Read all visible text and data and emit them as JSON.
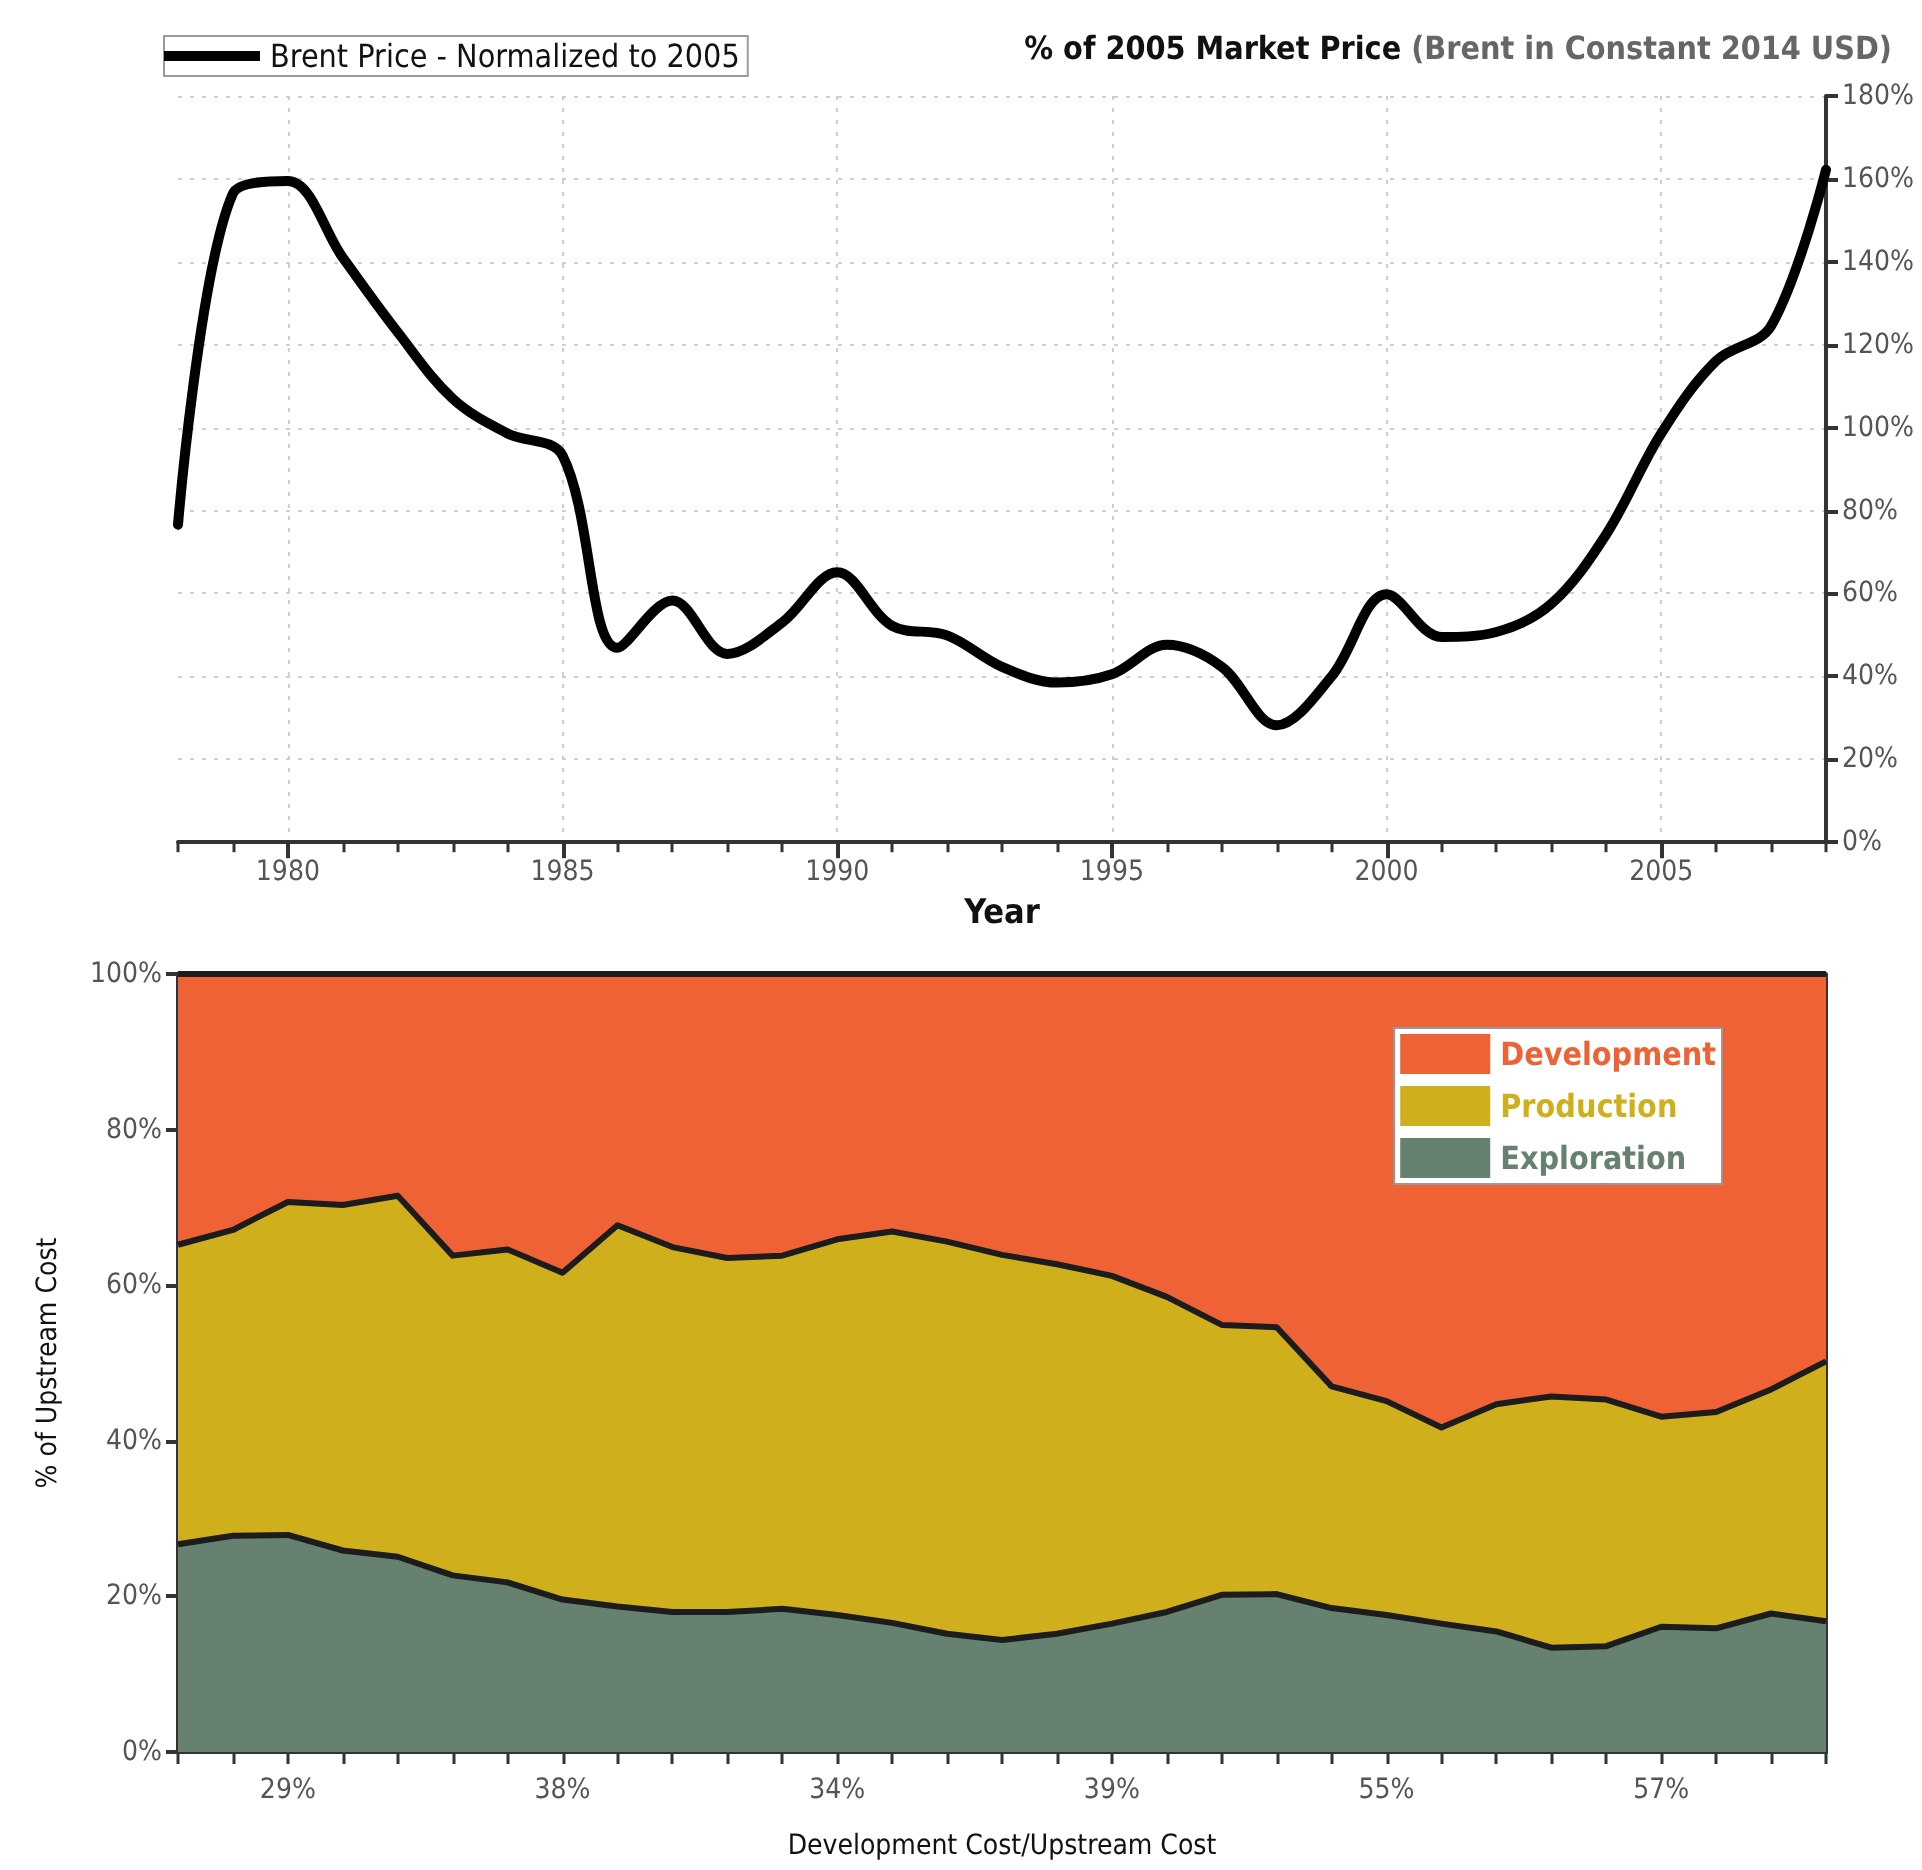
{
  "chart_data": [
    {
      "type": "line",
      "title": "% of 2005 Market Price",
      "subtitle": "(Brent in Constant 2014 USD)",
      "xlabel": "Year",
      "x": [
        1978,
        1979,
        1980,
        1981,
        1982,
        1983,
        1984,
        1985,
        1986,
        1987,
        1988,
        1989,
        1990,
        1991,
        1992,
        1993,
        1994,
        1995,
        1996,
        1997,
        1998,
        1999,
        2000,
        2001,
        2002,
        2003,
        2004,
        2005,
        2006,
        2007,
        2008
      ],
      "series": [
        {
          "name": "Brent Price - Normalized to 2005",
          "color": "#000000",
          "values": [
            76.6,
            156.5,
            159.5,
            141,
            123,
            107,
            98.6,
            93.3,
            46.9,
            58.3,
            45.4,
            53,
            65.1,
            52.2,
            49.9,
            42.3,
            38.5,
            40.5,
            47.6,
            42.3,
            28.2,
            40,
            59.8,
            49.5,
            50.7,
            57.5,
            74.3,
            98.6,
            116.1,
            124.5,
            162.2
          ]
        }
      ],
      "xlim": [
        1978,
        2008
      ],
      "xticks": [
        {
          "value": 1978,
          "label": null
        },
        {
          "value": 1979,
          "label": null
        },
        1980,
        {
          "value": 1981,
          "label": null
        },
        {
          "value": 1982,
          "label": null
        },
        {
          "value": 1983,
          "label": null
        },
        {
          "value": 1984,
          "label": null
        },
        1985,
        {
          "value": 1986,
          "label": null
        },
        {
          "value": 1987,
          "label": null
        },
        {
          "value": 1988,
          "label": null
        },
        {
          "value": 1989,
          "label": null
        },
        1990,
        {
          "value": 1991,
          "label": null
        },
        {
          "value": 1992,
          "label": null
        },
        {
          "value": 1993,
          "label": null
        },
        {
          "value": 1994,
          "label": null
        },
        1995,
        {
          "value": 1996,
          "label": null
        },
        {
          "value": 1997,
          "label": null
        },
        {
          "value": 1998,
          "label": null
        },
        {
          "value": 1999,
          "label": null
        },
        2000,
        {
          "value": 2001,
          "label": null
        },
        {
          "value": 2002,
          "label": null
        },
        {
          "value": 2003,
          "label": null
        },
        {
          "value": 2004,
          "label": null
        },
        2005,
        {
          "value": 2006,
          "label": null
        },
        {
          "value": 2007,
          "label": null
        },
        {
          "value": 2008,
          "label": null
        }
      ],
      "ylim": [
        0,
        180
      ],
      "yticks": [
        {
          "value": 0,
          "label": "0%"
        },
        {
          "value": 20,
          "label": "20%"
        },
        {
          "value": 40,
          "label": "40%"
        },
        {
          "value": 60,
          "label": "60%"
        },
        {
          "value": 80,
          "label": "80%"
        },
        {
          "value": 100,
          "label": "100%"
        },
        {
          "value": 120,
          "label": "120%"
        },
        {
          "value": 140,
          "label": "140%"
        },
        {
          "value": 160,
          "label": "160%"
        },
        {
          "value": 180,
          "label": "180%"
        }
      ],
      "grid": true,
      "legend": "top left",
      "marker": "none",
      "line_style": "solid"
    },
    {
      "type": "area",
      "xlabel": "Development Cost/Upstream Cost",
      "ylabel": "% of Upstream Cost",
      "stacked": true,
      "categories": [
        null,
        null,
        "29%",
        null,
        null,
        null,
        null,
        "38%",
        null,
        null,
        null,
        null,
        "34%",
        null,
        null,
        null,
        null,
        "39%",
        null,
        null,
        null,
        null,
        "55%",
        null,
        null,
        null,
        null,
        "57%",
        null,
        null,
        null
      ],
      "series": [
        {
          "name": "Exploration",
          "color": "#66816f",
          "values": [
            26.7,
            27.8,
            27.9,
            25.9,
            25.1,
            22.7,
            21.8,
            19.6,
            18.7,
            18.0,
            18.0,
            18.4,
            17.6,
            16.6,
            15.2,
            14.4,
            15.2,
            16.5,
            18.0,
            20.2,
            20.3,
            18.5,
            17.6,
            16.5,
            15.5,
            13.4,
            13.6,
            16.1,
            15.9,
            17.8,
            16.8
          ]
        },
        {
          "name": "Production",
          "color": "#cfb01c",
          "values": [
            38.5,
            39.3,
            42.8,
            44.4,
            46.4,
            41.1,
            42.8,
            42.0,
            49.0,
            46.9,
            45.5,
            45.4,
            48.3,
            50.3,
            50.4,
            49.5,
            47.5,
            44.7,
            40.5,
            34.7,
            34.3,
            28.5,
            27.5,
            25.2,
            29.2,
            32.3,
            31.7,
            27.0,
            27.8,
            28.8,
            33.4
          ]
        },
        {
          "name": "Development",
          "color": "#ee6236",
          "values": [
            34.8,
            32.9,
            29.3,
            29.7,
            28.5,
            36.2,
            35.4,
            38.4,
            32.3,
            35.1,
            36.5,
            36.2,
            34.1,
            33.1,
            34.4,
            36.1,
            37.3,
            38.8,
            41.5,
            45.1,
            45.4,
            53.0,
            54.9,
            58.3,
            55.3,
            54.3,
            54.7,
            56.9,
            56.3,
            53.4,
            49.8
          ]
        }
      ],
      "ylim": [
        0,
        100
      ],
      "yticks": [
        {
          "value": 0,
          "label": "0%"
        },
        {
          "value": 20,
          "label": "20%"
        },
        {
          "value": 40,
          "label": "40%"
        },
        {
          "value": 60,
          "label": "60%"
        },
        {
          "value": 80,
          "label": "80%"
        },
        {
          "value": 100,
          "label": "100%"
        }
      ],
      "legend": "top right",
      "marker": "none",
      "line_style": "solid"
    }
  ]
}
